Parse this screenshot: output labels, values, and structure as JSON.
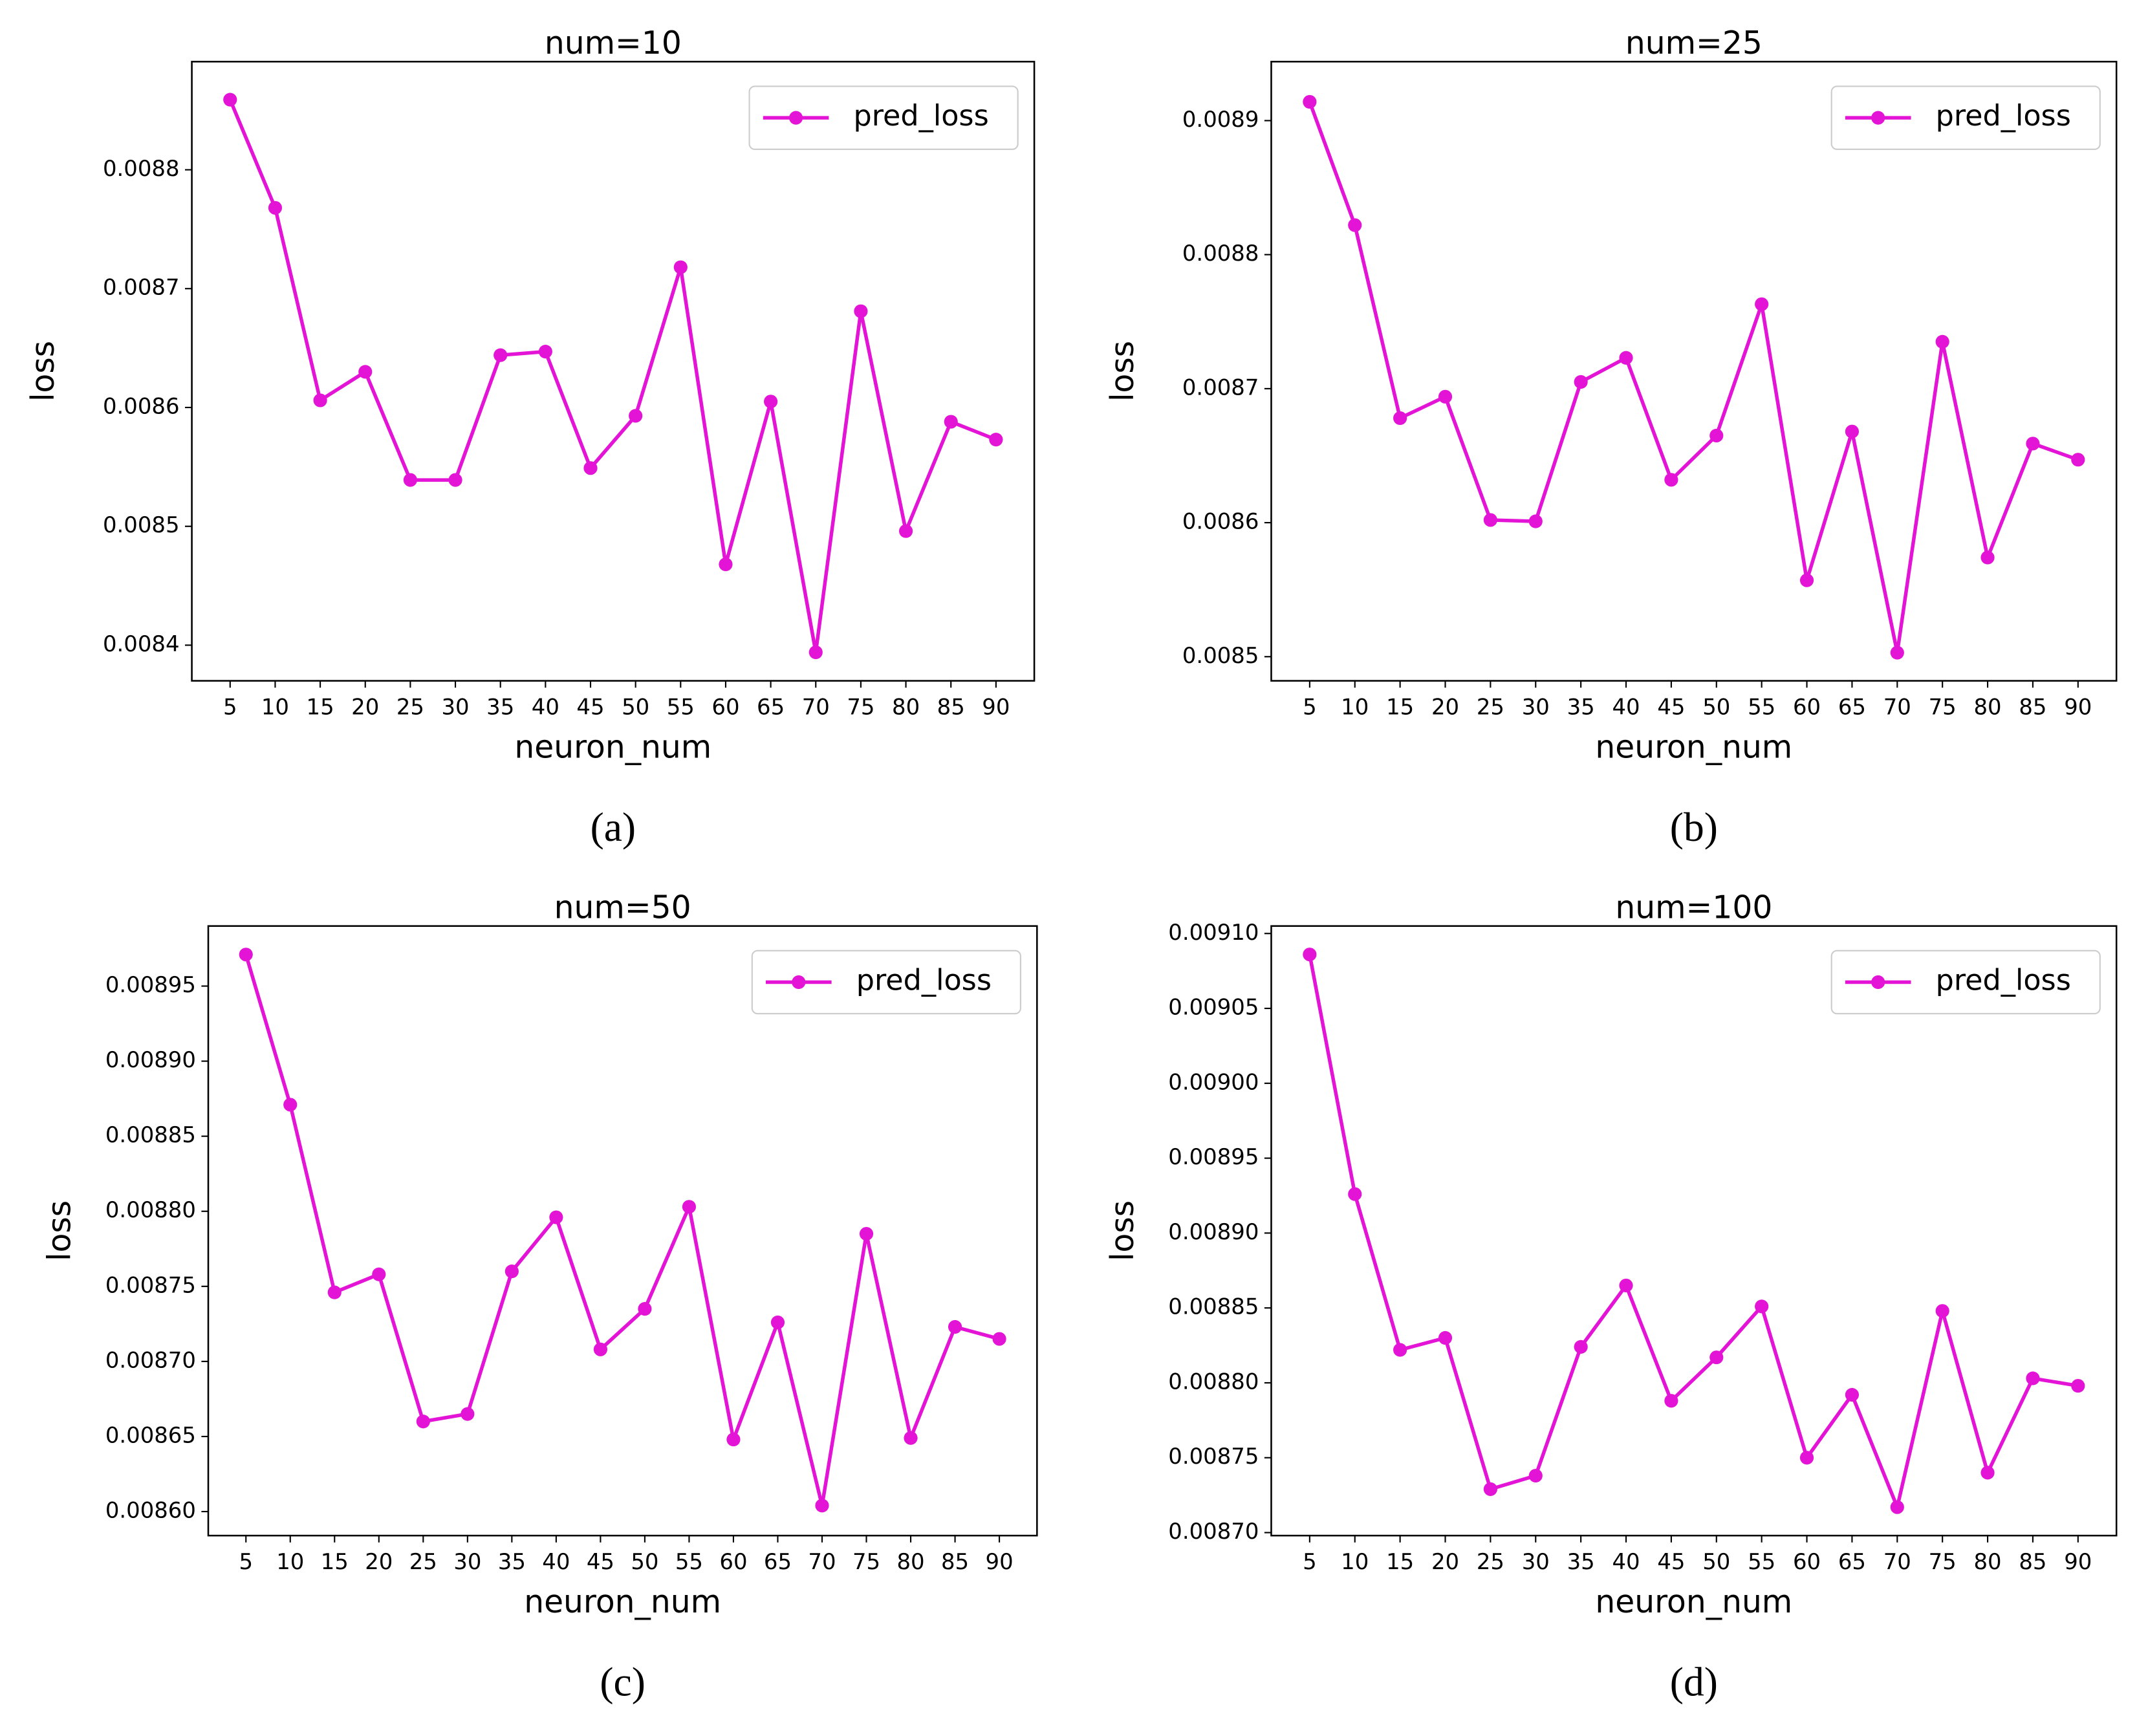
{
  "chart_data": [
    {
      "type": "line",
      "title": "num=10",
      "caption": "(a)",
      "xlabel": "neuron_num",
      "ylabel": "loss",
      "x": [
        5,
        10,
        15,
        20,
        25,
        30,
        35,
        40,
        45,
        50,
        55,
        60,
        65,
        70,
        75,
        80,
        85,
        90
      ],
      "series": [
        {
          "name": "pred_loss",
          "color": "#e314d6",
          "values": [
            0.008859,
            0.008768,
            0.008606,
            0.00863,
            0.008539,
            0.008539,
            0.008644,
            0.008647,
            0.008549,
            0.008593,
            0.008718,
            0.008468,
            0.008605,
            0.008394,
            0.008681,
            0.008496,
            0.008588,
            0.008573
          ]
        }
      ],
      "xlim": [
        0.75,
        94.25
      ],
      "ylim": [
        0.00837,
        0.008891
      ],
      "xticks": [
        5,
        10,
        15,
        20,
        25,
        30,
        35,
        40,
        45,
        50,
        55,
        60,
        65,
        70,
        75,
        80,
        85,
        90
      ],
      "yticks": [
        0.0084,
        0.0085,
        0.0086,
        0.0087,
        0.0088
      ],
      "legend": "upper right",
      "grid": false
    },
    {
      "type": "line",
      "title": "num=25",
      "caption": "(b)",
      "xlabel": "neuron_num",
      "ylabel": "loss",
      "x": [
        5,
        10,
        15,
        20,
        25,
        30,
        35,
        40,
        45,
        50,
        55,
        60,
        65,
        70,
        75,
        80,
        85,
        90
      ],
      "series": [
        {
          "name": "pred_loss",
          "color": "#e314d6",
          "values": [
            0.008914,
            0.008822,
            0.008678,
            0.008694,
            0.008602,
            0.008601,
            0.008705,
            0.008723,
            0.008632,
            0.008665,
            0.008763,
            0.008557,
            0.008668,
            0.008503,
            0.008735,
            0.008574,
            0.008659,
            0.008647
          ]
        }
      ],
      "xlim": [
        0.75,
        94.25
      ],
      "ylim": [
        0.008482,
        0.008944
      ],
      "xticks": [
        5,
        10,
        15,
        20,
        25,
        30,
        35,
        40,
        45,
        50,
        55,
        60,
        65,
        70,
        75,
        80,
        85,
        90
      ],
      "yticks": [
        0.0085,
        0.0086,
        0.0087,
        0.0088,
        0.0089
      ],
      "legend": "upper right",
      "grid": false
    },
    {
      "type": "line",
      "title": "num=50",
      "caption": "(c)",
      "xlabel": "neuron_num",
      "ylabel": "loss",
      "x": [
        5,
        10,
        15,
        20,
        25,
        30,
        35,
        40,
        45,
        50,
        55,
        60,
        65,
        70,
        75,
        80,
        85,
        90
      ],
      "series": [
        {
          "name": "pred_loss",
          "color": "#e314d6",
          "values": [
            0.008971,
            0.008871,
            0.008746,
            0.008758,
            0.00866,
            0.008665,
            0.00876,
            0.008796,
            0.008708,
            0.008735,
            0.008803,
            0.008648,
            0.008726,
            0.008604,
            0.008785,
            0.008649,
            0.008723,
            0.008715
          ]
        }
      ],
      "xlim": [
        0.75,
        94.25
      ],
      "ylim": [
        0.008584,
        0.00899
      ],
      "xticks": [
        5,
        10,
        15,
        20,
        25,
        30,
        35,
        40,
        45,
        50,
        55,
        60,
        65,
        70,
        75,
        80,
        85,
        90
      ],
      "yticks": [
        {
          "value": 0.0086,
          "label": "0.00860"
        },
        0.00865,
        {
          "value": 0.0087,
          "label": "0.00870"
        },
        0.00875,
        {
          "value": 0.0088,
          "label": "0.00880"
        },
        0.00885,
        {
          "value": 0.0089,
          "label": "0.00890"
        },
        0.00895
      ],
      "legend": "upper right",
      "grid": false
    },
    {
      "type": "line",
      "title": "num=100",
      "caption": "(d)",
      "xlabel": "neuron_num",
      "ylabel": "loss",
      "x": [
        5,
        10,
        15,
        20,
        25,
        30,
        35,
        40,
        45,
        50,
        55,
        60,
        65,
        70,
        75,
        80,
        85,
        90
      ],
      "series": [
        {
          "name": "pred_loss",
          "color": "#e314d6",
          "values": [
            0.009086,
            0.008926,
            0.008822,
            0.00883,
            0.008729,
            0.008738,
            0.008824,
            0.008865,
            0.008788,
            0.008817,
            0.008851,
            0.00875,
            0.008792,
            0.008717,
            0.008848,
            0.00874,
            0.008803,
            0.008798
          ]
        }
      ],
      "xlim": [
        0.75,
        94.25
      ],
      "ylim": [
        0.008698,
        0.009105
      ],
      "xticks": [
        5,
        10,
        15,
        20,
        25,
        30,
        35,
        40,
        45,
        50,
        55,
        60,
        65,
        70,
        75,
        80,
        85,
        90
      ],
      "yticks": [
        {
          "value": 0.0087,
          "label": "0.00870"
        },
        0.00875,
        {
          "value": 0.0088,
          "label": "0.00880"
        },
        0.00885,
        {
          "value": 0.0089,
          "label": "0.00890"
        },
        0.00895,
        {
          "value": 0.009,
          "label": "0.00900"
        },
        0.00905,
        {
          "value": 0.0091,
          "label": "0.00910"
        }
      ],
      "legend": "upper right",
      "grid": false
    }
  ]
}
